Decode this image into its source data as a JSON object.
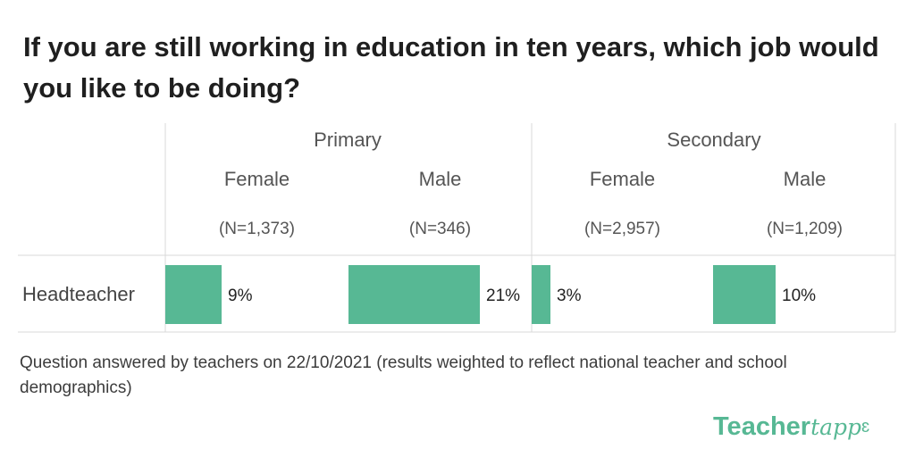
{
  "title": "If you are still working in education in ten years, which job would you like to be doing?",
  "chart_data": {
    "type": "bar",
    "value_format": "percent",
    "column_groups": [
      {
        "label": "Primary",
        "columns": [
          {
            "label": "Female",
            "n": "(N=1,373)"
          },
          {
            "label": "Male",
            "n": "(N=346)"
          }
        ]
      },
      {
        "label": "Secondary",
        "columns": [
          {
            "label": "Female",
            "n": "(N=2,957)"
          },
          {
            "label": "Male",
            "n": "(N=1,209)"
          }
        ]
      }
    ],
    "rows": [
      {
        "label": "Headteacher",
        "values": [
          9,
          21,
          3,
          10
        ]
      }
    ],
    "bar_color": "#57b894"
  },
  "footnote": "Question answered by  teachers on 22/10/2021 (results weighted to reflect national teacher and school demographics)",
  "logo": {
    "part1": "Teacher",
    "part2": "tapp"
  }
}
